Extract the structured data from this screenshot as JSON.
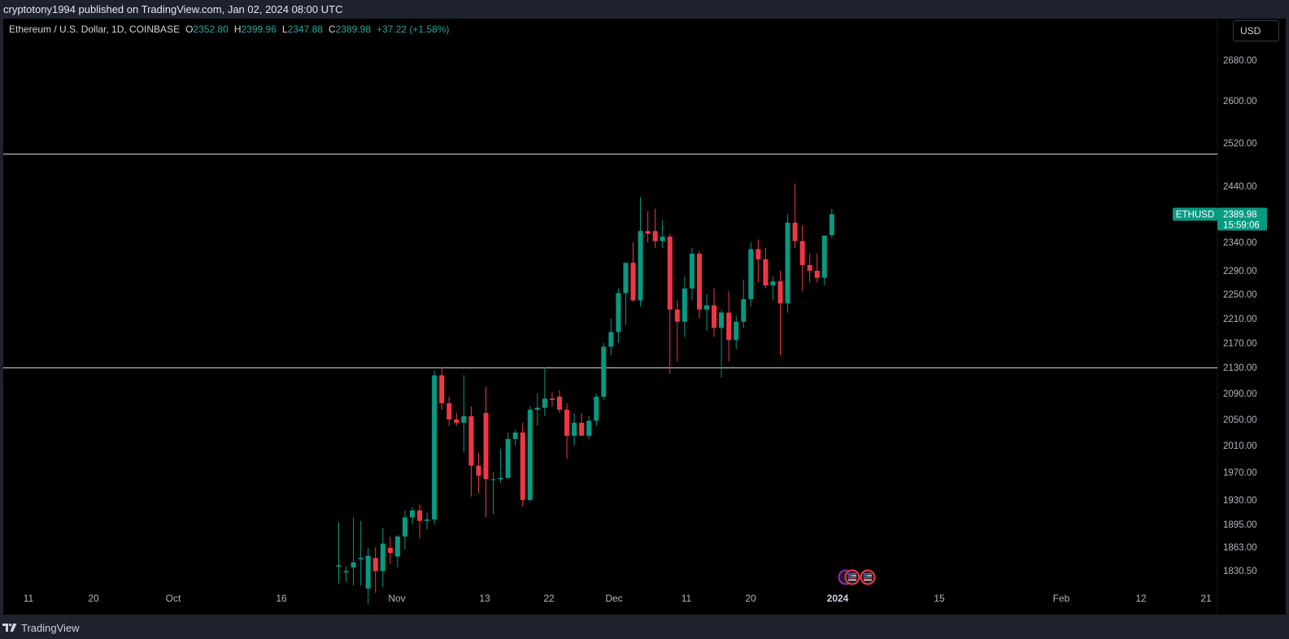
{
  "header": {
    "published_text": "cryptotony1994 published on TradingView.com, Jan 02, 2024 08:00 UTC"
  },
  "legend": {
    "symbol": "Ethereum / U.S. Dollar, 1D, COINBASE",
    "open_label": "O",
    "open": "2352.80",
    "high_label": "H",
    "high": "2399.96",
    "low_label": "L",
    "low": "2347.88",
    "close_label": "C",
    "close": "2389.98",
    "change": "+37.22 (+1.58%)"
  },
  "currency": "USD",
  "price_tag": {
    "symbol": "ETHUSD",
    "price": "2389.98",
    "countdown": "15:59:06"
  },
  "footer": {
    "brand": "TradingView"
  },
  "colors": {
    "up": "#089981",
    "down": "#f23645",
    "background": "#000000",
    "horizontal_line": "#d1d4dc",
    "axis_text": "#b2b5be",
    "tag": "#089981"
  },
  "icons": [
    "tradingview-logo-icon",
    "us-flag-event-icon"
  ],
  "chart_data": {
    "type": "candlestick",
    "title": "Ethereum / U.S. Dollar, 1D, COINBASE",
    "y_ticks": [
      "2680.00",
      "2600.00",
      "2520.00",
      "2440.00",
      "2340.00",
      "2290.00",
      "2250.00",
      "2210.00",
      "2170.00",
      "2130.00",
      "2090.00",
      "2050.00",
      "2010.00",
      "1970.00",
      "1930.00",
      "1895.00",
      "1863.00",
      "1830.50"
    ],
    "x_ticks": [
      "11",
      "20",
      "Oct",
      "16",
      "Nov",
      "13",
      "22",
      "Dec",
      "11",
      "20",
      "2024",
      "15",
      "Feb",
      "12",
      "21"
    ],
    "horizontal_lines": [
      2500,
      2130
    ],
    "candles": [
      {
        "o": 1836,
        "h": 1898,
        "l": 1813,
        "c": 1838
      },
      {
        "o": 1828,
        "h": 1836,
        "l": 1815,
        "c": 1830
      },
      {
        "o": 1835,
        "h": 1905,
        "l": 1810,
        "c": 1842
      },
      {
        "o": 1846,
        "h": 1900,
        "l": 1810,
        "c": 1848
      },
      {
        "o": 1806,
        "h": 1862,
        "l": 1785,
        "c": 1851
      },
      {
        "o": 1848,
        "h": 1863,
        "l": 1800,
        "c": 1830
      },
      {
        "o": 1830,
        "h": 1890,
        "l": 1808,
        "c": 1868
      },
      {
        "o": 1862,
        "h": 1878,
        "l": 1840,
        "c": 1855
      },
      {
        "o": 1850,
        "h": 1880,
        "l": 1835,
        "c": 1878
      },
      {
        "o": 1878,
        "h": 1915,
        "l": 1860,
        "c": 1905
      },
      {
        "o": 1905,
        "h": 1920,
        "l": 1895,
        "c": 1915
      },
      {
        "o": 1915,
        "h": 1924,
        "l": 1875,
        "c": 1900
      },
      {
        "o": 1900,
        "h": 1912,
        "l": 1888,
        "c": 1902
      },
      {
        "o": 1902,
        "h": 2125,
        "l": 1895,
        "c": 2118
      },
      {
        "o": 2118,
        "h": 2130,
        "l": 2065,
        "c": 2075
      },
      {
        "o": 2075,
        "h": 2085,
        "l": 2040,
        "c": 2050
      },
      {
        "o": 2050,
        "h": 2060,
        "l": 2040,
        "c": 2045
      },
      {
        "o": 2045,
        "h": 2118,
        "l": 2000,
        "c": 2055
      },
      {
        "o": 2055,
        "h": 2070,
        "l": 1935,
        "c": 1980
      },
      {
        "o": 1980,
        "h": 2000,
        "l": 1940,
        "c": 1965
      },
      {
        "o": 2060,
        "h": 2100,
        "l": 1905,
        "c": 1960
      },
      {
        "o": 1960,
        "h": 1970,
        "l": 1910,
        "c": 1960
      },
      {
        "o": 1960,
        "h": 2005,
        "l": 1955,
        "c": 1962
      },
      {
        "o": 1962,
        "h": 2030,
        "l": 1960,
        "c": 2020
      },
      {
        "o": 2020,
        "h": 2034,
        "l": 2010,
        "c": 2030
      },
      {
        "o": 2030,
        "h": 2045,
        "l": 1920,
        "c": 1930
      },
      {
        "o": 1930,
        "h": 2070,
        "l": 1928,
        "c": 2065
      },
      {
        "o": 2065,
        "h": 2090,
        "l": 2040,
        "c": 2068
      },
      {
        "o": 2068,
        "h": 2130,
        "l": 2055,
        "c": 2082
      },
      {
        "o": 2082,
        "h": 2092,
        "l": 2070,
        "c": 2080
      },
      {
        "o": 2085,
        "h": 2095,
        "l": 2060,
        "c": 2065
      },
      {
        "o": 2065,
        "h": 2075,
        "l": 1990,
        "c": 2025
      },
      {
        "o": 2025,
        "h": 2060,
        "l": 2010,
        "c": 2045
      },
      {
        "o": 2045,
        "h": 2060,
        "l": 2030,
        "c": 2025
      },
      {
        "o": 2025,
        "h": 2055,
        "l": 2020,
        "c": 2048
      },
      {
        "o": 2048,
        "h": 2090,
        "l": 2040,
        "c": 2085
      },
      {
        "o": 2085,
        "h": 2170,
        "l": 2080,
        "c": 2164
      },
      {
        "o": 2164,
        "h": 2210,
        "l": 2150,
        "c": 2188
      },
      {
        "o": 2188,
        "h": 2260,
        "l": 2170,
        "c": 2252
      },
      {
        "o": 2252,
        "h": 2300,
        "l": 2200,
        "c": 2304
      },
      {
        "o": 2304,
        "h": 2340,
        "l": 2238,
        "c": 2240
      },
      {
        "o": 2240,
        "h": 2420,
        "l": 2230,
        "c": 2360
      },
      {
        "o": 2360,
        "h": 2395,
        "l": 2340,
        "c": 2355
      },
      {
        "o": 2360,
        "h": 2400,
        "l": 2330,
        "c": 2342
      },
      {
        "o": 2342,
        "h": 2380,
        "l": 2330,
        "c": 2350
      },
      {
        "o": 2350,
        "h": 2355,
        "l": 2120,
        "c": 2225
      },
      {
        "o": 2225,
        "h": 2240,
        "l": 2140,
        "c": 2205
      },
      {
        "o": 2205,
        "h": 2280,
        "l": 2180,
        "c": 2260
      },
      {
        "o": 2260,
        "h": 2330,
        "l": 2240,
        "c": 2320
      },
      {
        "o": 2320,
        "h": 2325,
        "l": 2210,
        "c": 2225
      },
      {
        "o": 2225,
        "h": 2250,
        "l": 2190,
        "c": 2232
      },
      {
        "o": 2232,
        "h": 2260,
        "l": 2180,
        "c": 2195
      },
      {
        "o": 2195,
        "h": 2225,
        "l": 2115,
        "c": 2220
      },
      {
        "o": 2220,
        "h": 2255,
        "l": 2140,
        "c": 2175
      },
      {
        "o": 2175,
        "h": 2215,
        "l": 2160,
        "c": 2205
      },
      {
        "o": 2205,
        "h": 2275,
        "l": 2195,
        "c": 2242
      },
      {
        "o": 2242,
        "h": 2340,
        "l": 2230,
        "c": 2328
      },
      {
        "o": 2328,
        "h": 2345,
        "l": 2270,
        "c": 2310
      },
      {
        "o": 2310,
        "h": 2330,
        "l": 2260,
        "c": 2265
      },
      {
        "o": 2265,
        "h": 2280,
        "l": 2240,
        "c": 2272
      },
      {
        "o": 2272,
        "h": 2290,
        "l": 2150,
        "c": 2235
      },
      {
        "o": 2235,
        "h": 2390,
        "l": 2220,
        "c": 2375
      },
      {
        "o": 2375,
        "h": 2445,
        "l": 2330,
        "c": 2342
      },
      {
        "o": 2342,
        "h": 2370,
        "l": 2255,
        "c": 2300
      },
      {
        "o": 2300,
        "h": 2320,
        "l": 2270,
        "c": 2290
      },
      {
        "o": 2290,
        "h": 2320,
        "l": 2270,
        "c": 2278
      },
      {
        "o": 2278,
        "h": 2350,
        "l": 2265,
        "c": 2352
      },
      {
        "o": 2352.8,
        "h": 2399.96,
        "l": 2347.88,
        "c": 2389.98
      }
    ]
  }
}
